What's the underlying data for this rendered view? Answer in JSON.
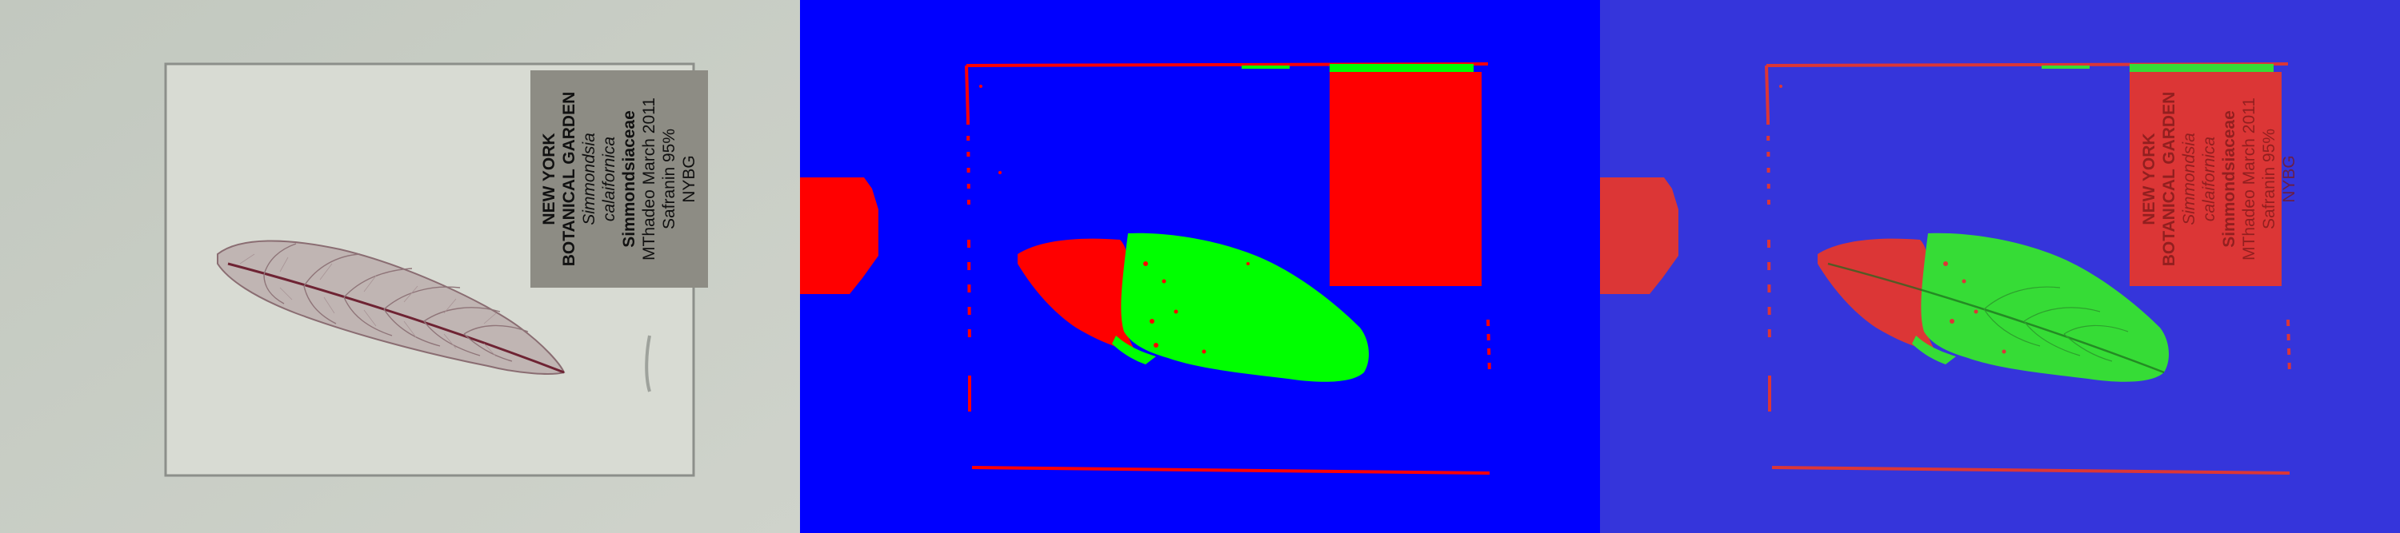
{
  "panels": [
    {
      "name": "original-photo"
    },
    {
      "name": "segmentation-mask"
    },
    {
      "name": "segmentation-overlay"
    }
  ],
  "specimen_label": {
    "line1": "NEW YORK",
    "line2": "BOTANICAL GARDEN",
    "line3": "Simmondsia calaifornica",
    "line4": "Simmondsiaceae",
    "line5": "MThadeo March 2011",
    "line6": "Safranin 95%",
    "line7": "NYBG"
  },
  "colors": {
    "photo_background": "#c9cec5",
    "mask_background": "#0000ff",
    "mask_red": "#ff0000",
    "mask_green": "#00ff00",
    "overlay_background": "#3636dc",
    "overlay_red": "#dc3636",
    "overlay_green": "#36dc36"
  }
}
